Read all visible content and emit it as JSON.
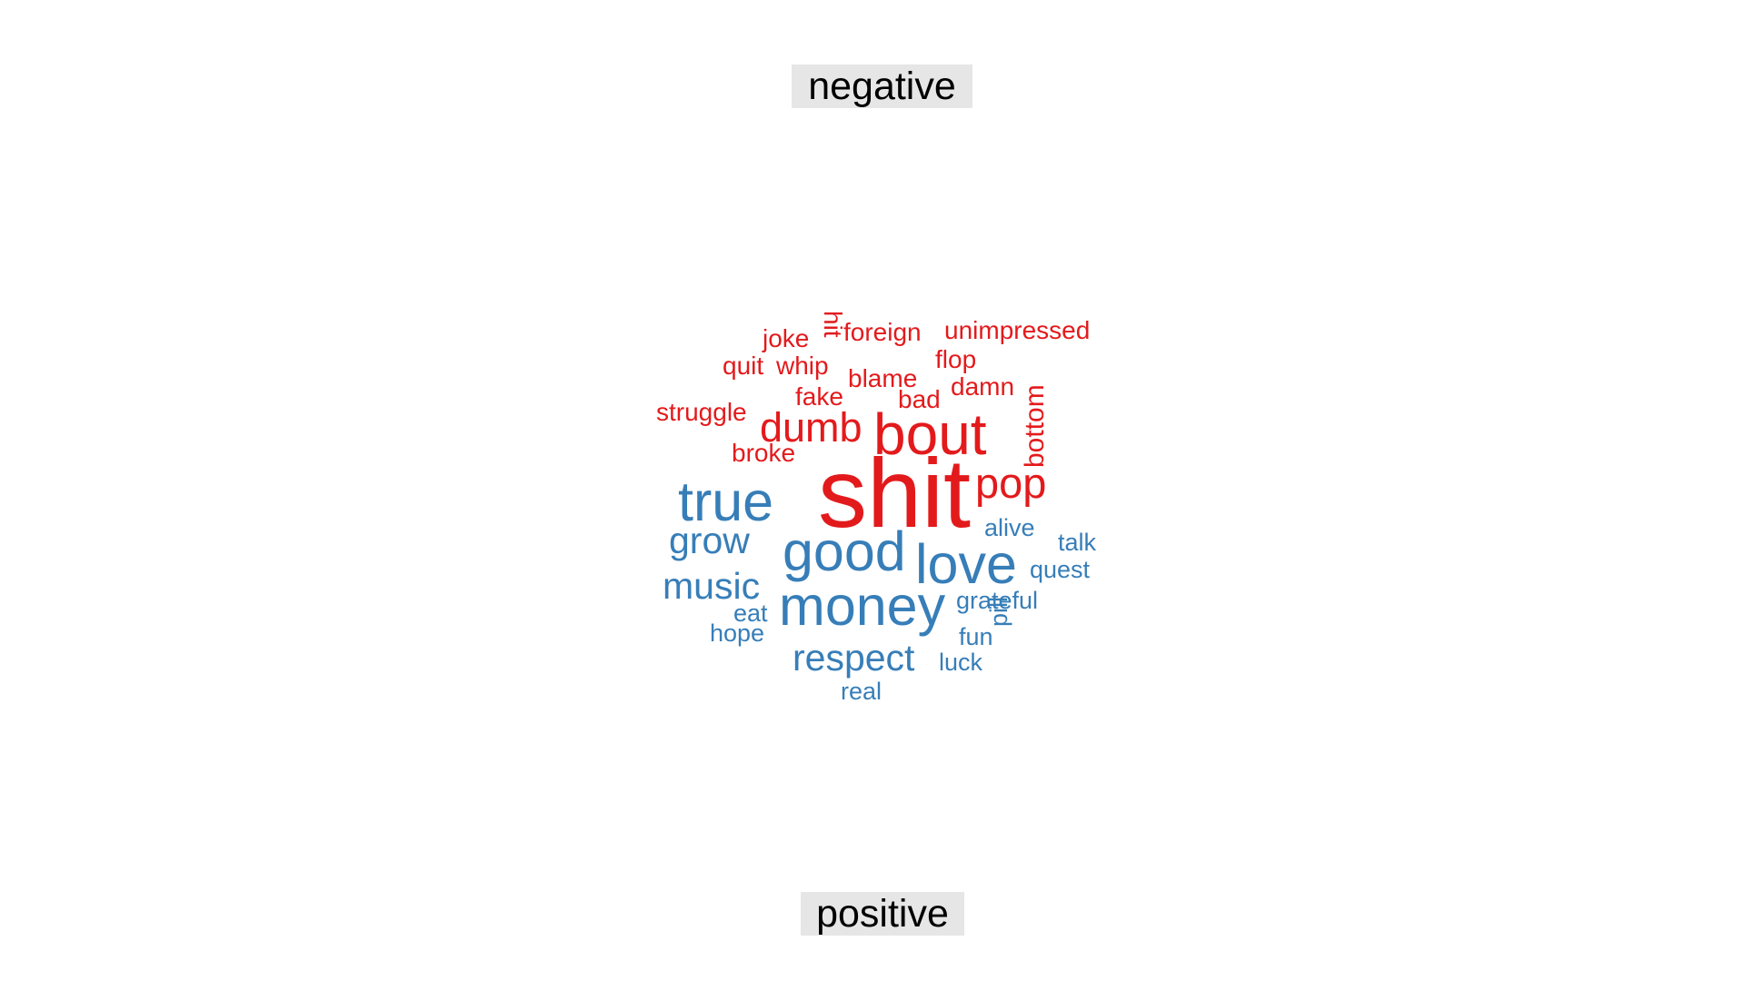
{
  "labels": {
    "negative": "negative",
    "positive": "positive"
  },
  "colors": {
    "negative": "#e31a1c",
    "positive": "#377eb8",
    "label_background": "#e6e6e6"
  },
  "words": [
    {
      "text": "shit",
      "sentiment": "negative"
    },
    {
      "text": "bout",
      "sentiment": "negative"
    },
    {
      "text": "dumb",
      "sentiment": "negative"
    },
    {
      "text": "pop",
      "sentiment": "negative"
    },
    {
      "text": "bottom",
      "sentiment": "negative"
    },
    {
      "text": "struggle",
      "sentiment": "negative"
    },
    {
      "text": "broke",
      "sentiment": "negative"
    },
    {
      "text": "fake",
      "sentiment": "negative"
    },
    {
      "text": "blame",
      "sentiment": "negative"
    },
    {
      "text": "bad",
      "sentiment": "negative"
    },
    {
      "text": "damn",
      "sentiment": "negative"
    },
    {
      "text": "quit",
      "sentiment": "negative"
    },
    {
      "text": "whip",
      "sentiment": "negative"
    },
    {
      "text": "flop",
      "sentiment": "negative"
    },
    {
      "text": "joke",
      "sentiment": "negative"
    },
    {
      "text": "hit",
      "sentiment": "negative"
    },
    {
      "text": "foreign",
      "sentiment": "negative"
    },
    {
      "text": "unimpressed",
      "sentiment": "negative"
    },
    {
      "text": "true",
      "sentiment": "positive"
    },
    {
      "text": "good",
      "sentiment": "positive"
    },
    {
      "text": "love",
      "sentiment": "positive"
    },
    {
      "text": "money",
      "sentiment": "positive"
    },
    {
      "text": "grow",
      "sentiment": "positive"
    },
    {
      "text": "music",
      "sentiment": "positive"
    },
    {
      "text": "respect",
      "sentiment": "positive"
    },
    {
      "text": "alive",
      "sentiment": "positive"
    },
    {
      "text": "talk",
      "sentiment": "positive"
    },
    {
      "text": "quest",
      "sentiment": "positive"
    },
    {
      "text": "grateful",
      "sentiment": "positive"
    },
    {
      "text": "eat",
      "sentiment": "positive"
    },
    {
      "text": "hope",
      "sentiment": "positive"
    },
    {
      "text": "fun",
      "sentiment": "positive"
    },
    {
      "text": "pill",
      "sentiment": "positive"
    },
    {
      "text": "luck",
      "sentiment": "positive"
    },
    {
      "text": "real",
      "sentiment": "positive"
    }
  ]
}
